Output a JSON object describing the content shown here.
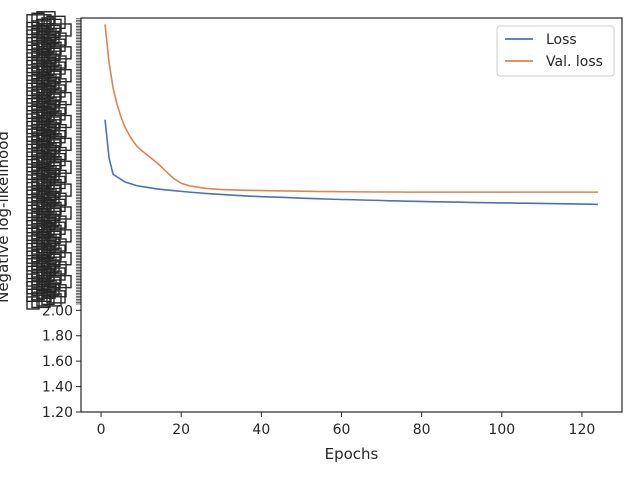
{
  "chart_data": {
    "type": "line",
    "xlabel": "Epochs",
    "ylabel": "Negative log-likelihood",
    "xlim": [
      -5,
      130
    ],
    "x_ticks": [
      0,
      20,
      40,
      60,
      80,
      100,
      120
    ],
    "x_tick_labels": [
      "0",
      "20",
      "40",
      "60",
      "80",
      "100",
      "120"
    ],
    "ylim": [
      1.2,
      4.3
    ],
    "y_ticks_readable": [
      1.2,
      1.4,
      1.6,
      1.8,
      2.0
    ],
    "y_tick_labels_readable": [
      "1.20",
      "1.40",
      "1.60",
      "1.80",
      "2.00"
    ],
    "y_tick_note": "above 2.00 the tick labels overlap densely and are unreadable",
    "legend": {
      "position": "top-right",
      "entries": [
        "Loss",
        "Val. loss"
      ]
    },
    "series": [
      {
        "name": "Loss",
        "color": "#4c72b0",
        "x": [
          1,
          2,
          3,
          4,
          5,
          6,
          7,
          8,
          9,
          10,
          12,
          14,
          16,
          18,
          20,
          22,
          24,
          26,
          28,
          30,
          32,
          34,
          36,
          38,
          40,
          42,
          44,
          46,
          48,
          50,
          52,
          54,
          56,
          58,
          60,
          62,
          64,
          66,
          68,
          70,
          72,
          74,
          76,
          78,
          80,
          82,
          84,
          86,
          88,
          90,
          92,
          94,
          96,
          98,
          100,
          102,
          104,
          106,
          108,
          110,
          112,
          114,
          116,
          118,
          120,
          122,
          124
        ],
        "y": [
          3.5,
          3.2,
          3.07,
          3.05,
          3.03,
          3.01,
          3.0,
          2.99,
          2.98,
          2.975,
          2.965,
          2.955,
          2.948,
          2.942,
          2.936,
          2.93,
          2.925,
          2.92,
          2.916,
          2.912,
          2.908,
          2.904,
          2.9,
          2.897,
          2.894,
          2.892,
          2.89,
          2.888,
          2.885,
          2.882,
          2.88,
          2.878,
          2.876,
          2.874,
          2.872,
          2.871,
          2.869,
          2.867,
          2.866,
          2.864,
          2.862,
          2.861,
          2.859,
          2.858,
          2.857,
          2.855,
          2.854,
          2.853,
          2.852,
          2.851,
          2.849,
          2.848,
          2.847,
          2.846,
          2.845,
          2.845,
          2.843,
          2.843,
          2.842,
          2.841,
          2.84,
          2.839,
          2.838,
          2.837,
          2.836,
          2.835,
          2.833
        ]
      },
      {
        "name": "Val. loss",
        "color": "#dd8452",
        "x": [
          1,
          2,
          3,
          4,
          5,
          6,
          7,
          8,
          9,
          10,
          12,
          14,
          16,
          18,
          20,
          22,
          24,
          26,
          28,
          30,
          32,
          34,
          36,
          38,
          40,
          42,
          44,
          46,
          48,
          50,
          52,
          54,
          56,
          58,
          60,
          62,
          64,
          66,
          68,
          70,
          72,
          74,
          76,
          78,
          80,
          82,
          84,
          86,
          88,
          90,
          92,
          94,
          96,
          98,
          100,
          102,
          104,
          106,
          108,
          110,
          112,
          114,
          116,
          118,
          120,
          122,
          124
        ],
        "y": [
          4.25,
          3.95,
          3.75,
          3.62,
          3.52,
          3.44,
          3.38,
          3.33,
          3.29,
          3.26,
          3.21,
          3.16,
          3.1,
          3.04,
          3.0,
          2.98,
          2.97,
          2.96,
          2.955,
          2.95,
          2.948,
          2.946,
          2.944,
          2.943,
          2.942,
          2.941,
          2.94,
          2.939,
          2.938,
          2.937,
          2.936,
          2.935,
          2.934,
          2.934,
          2.933,
          2.933,
          2.932,
          2.932,
          2.931,
          2.931,
          2.931,
          2.931,
          2.93,
          2.93,
          2.93,
          2.93,
          2.93,
          2.93,
          2.93,
          2.93,
          2.93,
          2.93,
          2.93,
          2.93,
          2.93,
          2.93,
          2.93,
          2.93,
          2.93,
          2.93,
          2.93,
          2.93,
          2.93,
          2.93,
          2.93,
          2.93,
          2.93
        ]
      }
    ]
  }
}
